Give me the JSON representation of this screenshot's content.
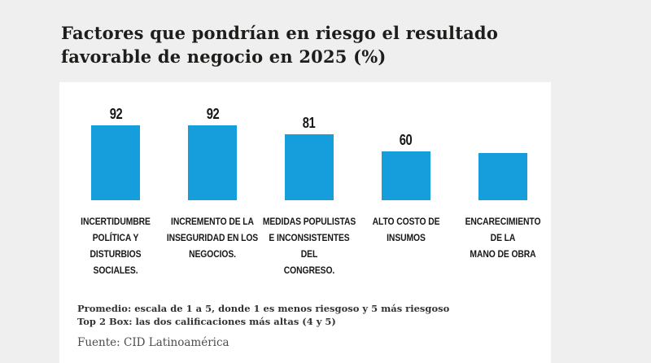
{
  "page": {
    "background_color": "#efefef",
    "card_color": "#ffffff",
    "title": "Factores que pondrían en riesgo el resultado\nfavorable de negocio en 2025 (%)"
  },
  "chart_data": {
    "type": "bar",
    "title": "Factores que pondrían en riesgo el resultado favorable de negocio en 2025 (%)",
    "unit": "%",
    "categories": [
      "INCERTIDUMBRE\nPOLÍTICA Y\nDISTURBIOS\nSOCIALES.",
      "INCREMENTO DE LA\nINSEGURIDAD EN LOS\nNEGOCIOS.",
      "MEDIDAS POPULISTAS\nE INCONSISTENTES DEL\nCONGRESO.",
      "ALTO COSTO DE\nINSUMOS",
      "ENCARECIMIENTO\nDE LA\nMANO DE OBRA"
    ],
    "values": [
      92,
      92,
      81,
      60,
      58
    ],
    "value_labels": [
      "92",
      "92",
      "81",
      "60",
      ""
    ],
    "bar_color": "#169ddb",
    "label_color": "#171717",
    "ylim": [
      0,
      100
    ],
    "grid": false,
    "legend": false,
    "xlabel": "",
    "ylabel": ""
  },
  "footer": {
    "note_line1": "Promedio: escala de 1 a 5, donde 1 es menos riesgoso y 5 más riesgoso",
    "note_line2": "Top 2 Box: las dos calificaciones más altas (4 y 5)",
    "source": "Fuente: CID Latinoamérica"
  }
}
